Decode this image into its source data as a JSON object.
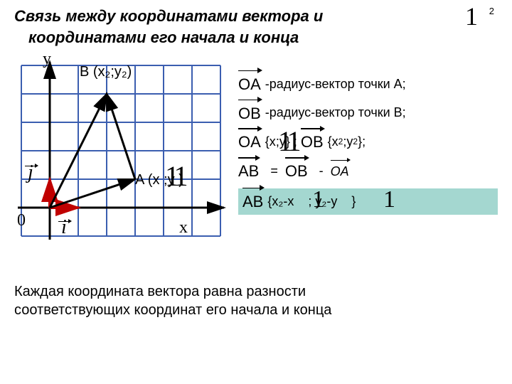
{
  "title_line1": "Связь между координатами вектора и",
  "title_line2": "координатами его начала и конца",
  "page_number": "2",
  "big_one": "1",
  "diagram": {
    "grid_color": "#3b5eb0",
    "grid_stroke": 2,
    "cols": 7,
    "rows": 6,
    "cell": 40,
    "origin_col": 1,
    "origin_row": 5,
    "axis_color": "#000000",
    "axis_stroke": 3,
    "points": {
      "A": {
        "col": 4,
        "row": 4,
        "label": "A (x  ;y  )"
      },
      "B": {
        "col": 3,
        "row": 1,
        "label": "B (x₂;y₂)"
      }
    },
    "y_label": "y",
    "x_label": "x",
    "origin_label": "0",
    "unit_i": "i",
    "unit_j": "j",
    "unit_color": "#c00000",
    "vec_line_width": 3,
    "point_A_overlay": "11"
  },
  "right": {
    "OA": "OA",
    "OB": "OB",
    "AB": "AB",
    "OA_text": "-радиус-вектор точки А;",
    "OB_text": "-радиус-вектор точки В;",
    "OA_coords_pre": "{x",
    "coords_mid": ";y",
    "coords_end": "} ;",
    "OB_coords_end": "};",
    "eq": "=",
    "minus": "-",
    "AB_coords_a": "{x₂-x",
    "AB_coords_b": "; y₂-y",
    "AB_coords_c": "}",
    "overlay_11a": "11",
    "overlay_1a": "1",
    "overlay_1b": "1"
  },
  "bottom_line1": "Каждая координата вектора равна разности",
  "bottom_line2": "соответствующих координат его начала и конца"
}
